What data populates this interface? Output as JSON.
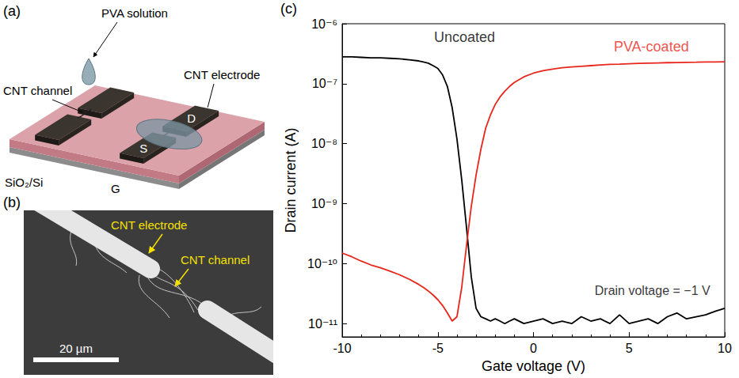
{
  "panel_a": {
    "label": "(a)",
    "texts": {
      "pva": "PVA solution",
      "channel": "CNT channel",
      "electrode": "CNT electrode",
      "drain": "D",
      "source": "S",
      "substrate": "SiO₂/Si",
      "gate": "G"
    }
  },
  "panel_b": {
    "label": "(b)",
    "texts": {
      "electrode": "CNT electrode",
      "channel": "CNT channel"
    },
    "scale_bar": "20 µm"
  },
  "chart_data": {
    "type": "line",
    "panel_label": "(c)",
    "x_label": "Gate voltage (V)",
    "y_label": "Drain current (A)",
    "log": "y",
    "grid": false,
    "xlim": [
      -10,
      10
    ],
    "xticks": [
      -10,
      -5,
      0,
      5,
      10
    ],
    "ylim": [
      6e-12,
      1e-06
    ],
    "yticks": [
      {
        "value": 1e-11,
        "label": "10⁻¹¹"
      },
      {
        "value": 1e-10,
        "label": "10⁻¹⁰"
      },
      {
        "value": 1e-09,
        "label": "10⁻⁹"
      },
      {
        "value": 1e-08,
        "label": "10⁻⁸"
      },
      {
        "value": 1e-07,
        "label": "10⁻⁷"
      },
      {
        "value": 1e-06,
        "label": "10⁻⁶"
      }
    ],
    "x": [
      -10,
      -9.5,
      -9,
      -8.5,
      -8,
      -7.5,
      -7,
      -6.5,
      -6,
      -5.75,
      -5.5,
      -5.25,
      -5,
      -4.75,
      -4.5,
      -4.25,
      -4,
      -3.75,
      -3.5,
      -3.25,
      -3,
      -2.75,
      -2.5,
      -2.25,
      -2,
      -1.75,
      -1.5,
      -1.25,
      -1,
      -0.5,
      0,
      0.5,
      1,
      1.5,
      2,
      2.5,
      3,
      3.5,
      4,
      4.5,
      5,
      5.5,
      6,
      6.5,
      7,
      7.5,
      8,
      8.5,
      9,
      9.5,
      10
    ],
    "series": [
      {
        "name": "Uncoated",
        "color": "#000000",
        "line_style": "solid",
        "label_position": {
          "x": -5.2,
          "y": 6e-07
        },
        "values": [
          2.8e-07,
          2.8e-07,
          2.75e-07,
          2.7e-07,
          2.7e-07,
          2.65e-07,
          2.6e-07,
          2.5e-07,
          2.4e-07,
          2.3e-07,
          2.2e-07,
          2e-07,
          1.8e-07,
          1.4e-07,
          9e-08,
          4e-08,
          1.2e-08,
          2.5e-09,
          4e-10,
          6e-11,
          1.8e-11,
          1.3e-11,
          1.2e-11,
          1.1e-11,
          1.2e-11,
          1.1e-11,
          1e-11,
          1.1e-11,
          1.2e-11,
          1e-11,
          1.1e-11,
          1.2e-11,
          1e-11,
          1.1e-11,
          1e-11,
          1.3e-11,
          1.1e-11,
          1.2e-11,
          1e-11,
          1.4e-11,
          1e-11,
          1.1e-11,
          1.2e-11,
          1e-11,
          1.3e-11,
          1.5e-11,
          1.2e-11,
          1.3e-11,
          1.4e-11,
          1.6e-11,
          1.8e-11
        ]
      },
      {
        "name": "PVA-coated",
        "color": "#e8261c",
        "line_style": "solid",
        "label_position": {
          "x": 4.2,
          "y": 4.2e-07
        },
        "values": [
          1.5e-10,
          1.3e-10,
          1.1e-10,
          9.5e-11,
          8.5e-11,
          7.5e-11,
          6.5e-11,
          5.5e-11,
          4.5e-11,
          4e-11,
          3.5e-11,
          3e-11,
          2.5e-11,
          2e-11,
          1.5e-11,
          1.1e-11,
          1.3e-11,
          4e-11,
          2e-10,
          9e-10,
          3e-09,
          8e-09,
          1.8e-08,
          3e-08,
          4.5e-08,
          6e-08,
          7.5e-08,
          9e-08,
          1.05e-07,
          1.3e-07,
          1.5e-07,
          1.65e-07,
          1.75e-07,
          1.85e-07,
          1.9e-07,
          1.95e-07,
          2e-07,
          2.05e-07,
          2.1e-07,
          2.12e-07,
          2.15e-07,
          2.18e-07,
          2.2e-07,
          2.22e-07,
          2.24e-07,
          2.25e-07,
          2.27e-07,
          2.28e-07,
          2.3e-07,
          2.3e-07,
          2.32e-07
        ]
      }
    ],
    "annotations": [
      {
        "text": "Drain voltage = −1 V",
        "x": 3.2,
        "y": 3.5e-11,
        "color": "#000000"
      }
    ]
  }
}
